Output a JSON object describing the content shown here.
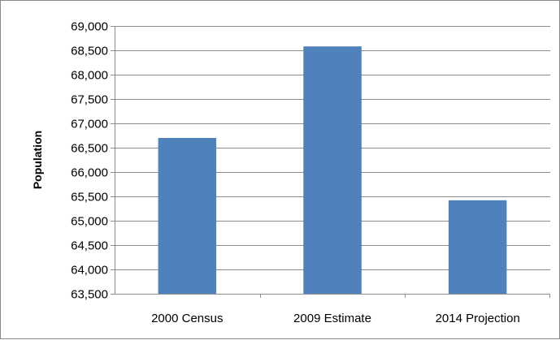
{
  "chart_data": {
    "type": "bar",
    "title": "",
    "xlabel": "",
    "ylabel": "Population",
    "categories": [
      "2000 Census",
      "2009 Estimate",
      "2014 Projection"
    ],
    "values": [
      66700,
      68580,
      65420
    ],
    "ylim": [
      63500,
      69000
    ],
    "yticks": [
      63500,
      64000,
      64500,
      65000,
      65500,
      66000,
      66500,
      67000,
      67500,
      68000,
      68500,
      69000
    ],
    "ytick_labels": [
      "63,500",
      "64,000",
      "64,500",
      "65,000",
      "65,500",
      "66,000",
      "66,500",
      "67,000",
      "67,500",
      "68,000",
      "68,500",
      "69,000"
    ],
    "grid": true,
    "legend": "none",
    "bar_color": "#4f81bd",
    "grid_color": "#8c8c8c"
  }
}
